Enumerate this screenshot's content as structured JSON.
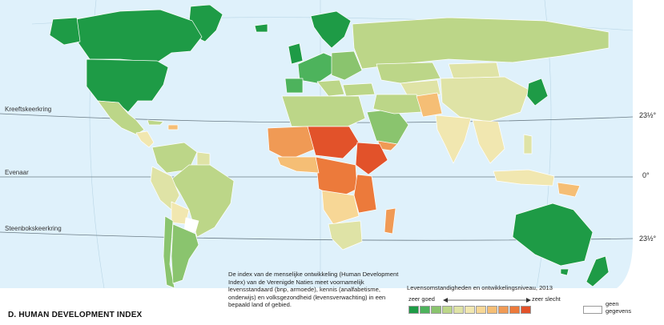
{
  "title": "D. HUMAN DEVELOPMENT INDEX",
  "lines": {
    "tropic_cancer": "Kreeftskeerkring",
    "equator": "Evenaar",
    "tropic_capricorn": "Steenbokskeerkring"
  },
  "degrees": {
    "north": "23½°",
    "equator": "0°",
    "south": "23½°"
  },
  "caption": "De index van de menselijke ontwikkeling (Human Development Index) van de Verenigde Naties meet voornamelijk levensstandaard (bnp, armoede), kennis (analfabetisme, onderwijs) en volksgezondheid (levensverwachting) in een bepaald land of gebied.",
  "legend": {
    "title": "Levensomstandigheden en ontwikkelingsniveau, 2013",
    "good_label": "zeer goed",
    "bad_label": "zeer slecht",
    "nodata_label_1": "geen",
    "nodata_label_2": "gegevens",
    "colors": [
      "#1e9b46",
      "#4db35c",
      "#8ac46e",
      "#bcd688",
      "#dfe3a6",
      "#f1e7b0",
      "#f7d796",
      "#f5be75",
      "#f09a55",
      "#ec7a3b",
      "#e2522a"
    ],
    "nodata_color": "#ffffff"
  },
  "colors": {
    "ocean": "#dff1fb",
    "very_good": "#1e9b46",
    "good": "#8ac46e",
    "medium": "#dfe3a6",
    "low": "#f5be75",
    "very_low": "#e2522a",
    "border": "#ffffff"
  }
}
